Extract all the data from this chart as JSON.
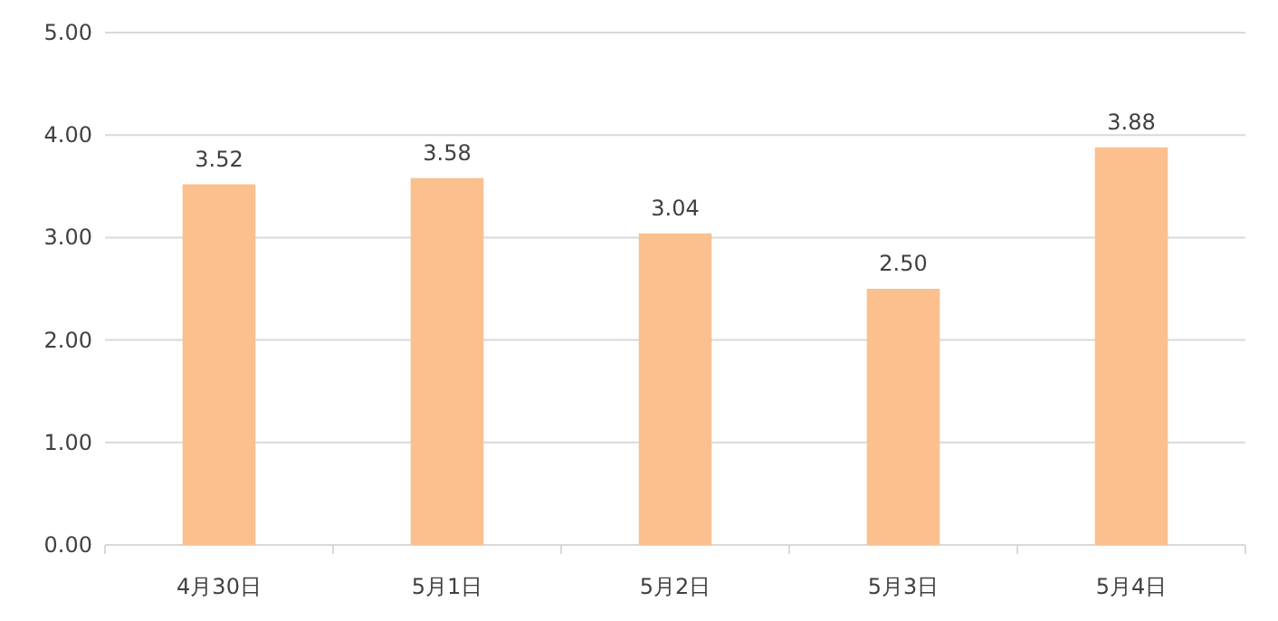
{
  "chart_data": {
    "type": "bar",
    "categories": [
      "4月30日",
      "5月1日",
      "5月2日",
      "5月3日",
      "5月4日"
    ],
    "values": [
      3.52,
      3.58,
      3.04,
      2.5,
      3.88
    ],
    "value_labels": [
      "3.52",
      "3.58",
      "3.04",
      "2.50",
      "3.88"
    ],
    "color": "#fbc08e",
    "ylim": [
      0,
      5
    ],
    "yticks": [
      {
        "value": 0,
        "label": "0.00"
      },
      {
        "value": 1,
        "label": "1.00"
      },
      {
        "value": 2,
        "label": "2.00"
      },
      {
        "value": 3,
        "label": "3.00"
      },
      {
        "value": 4,
        "label": "4.00"
      },
      {
        "value": 5,
        "label": "5.00"
      }
    ],
    "grid": "y"
  }
}
